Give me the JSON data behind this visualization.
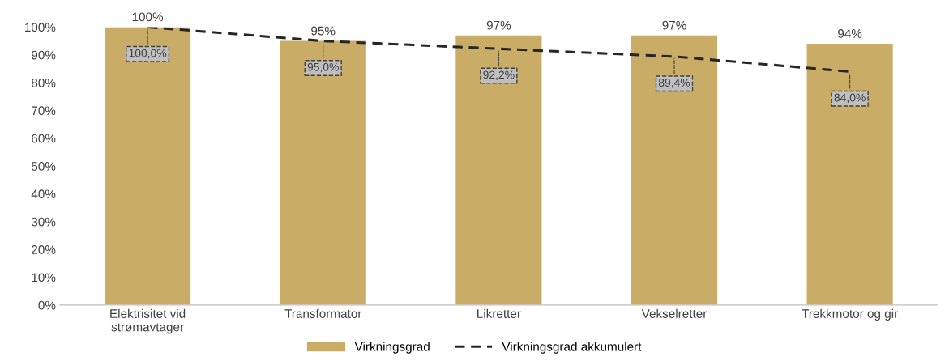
{
  "chart_data": {
    "type": "bar",
    "categories": [
      "Elektrisitet vid\nstrømavtager",
      "Transformator",
      "Likretter",
      "Vekselretter",
      "Trekkmotor og gir"
    ],
    "series": [
      {
        "name": "Virkningsgrad",
        "color": "#c9ad66",
        "values": [
          100,
          95,
          97,
          97,
          94
        ],
        "value_labels": [
          "100%",
          "95%",
          "97%",
          "97%",
          "94%"
        ]
      },
      {
        "name": "Virkningsgrad akkumulert",
        "type": "line",
        "color": "#262626",
        "line_style": "dashed",
        "values": [
          100.0,
          95.0,
          92.2,
          89.4,
          84.0
        ],
        "value_labels": [
          "100,0%",
          "95,0%",
          "92,2%",
          "89,4%",
          "84,0%"
        ]
      }
    ],
    "ylim": [
      0,
      100
    ],
    "yticks": [
      {
        "value": 0,
        "label": "0%"
      },
      {
        "value": 10,
        "label": "10%"
      },
      {
        "value": 20,
        "label": "20%"
      },
      {
        "value": 30,
        "label": "30%"
      },
      {
        "value": 40,
        "label": "40%"
      },
      {
        "value": 50,
        "label": "50%"
      },
      {
        "value": 60,
        "label": "60%"
      },
      {
        "value": 70,
        "label": "70%"
      },
      {
        "value": 80,
        "label": "80%"
      },
      {
        "value": 90,
        "label": "90%"
      },
      {
        "value": 100,
        "label": "100%"
      }
    ],
    "legend": "bottom"
  }
}
